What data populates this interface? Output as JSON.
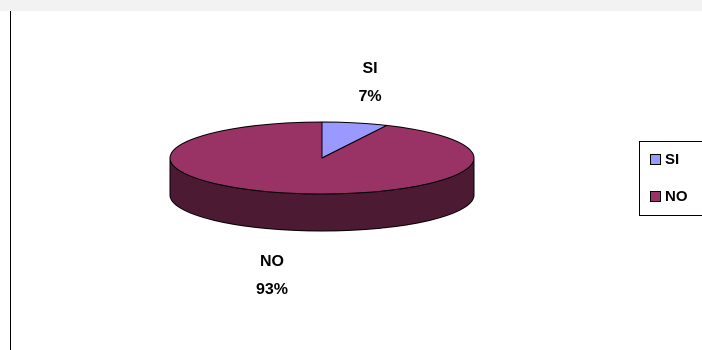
{
  "chart_data": {
    "type": "pie",
    "three_d": true,
    "categories": [
      "SI",
      "NO"
    ],
    "values": [
      7,
      93
    ],
    "data_labels": [
      {
        "name": "SI",
        "percent": "7%"
      },
      {
        "name": "NO",
        "percent": "93%"
      }
    ],
    "colors": {
      "SI": "#9999ff",
      "NO": "#993366",
      "NO_side": "#4d1a33",
      "SI_side": "#4d4d80"
    },
    "legend": {
      "placement": "right",
      "items": [
        {
          "label": "SI",
          "color": "#9999ff"
        },
        {
          "label": "NO",
          "color": "#993366"
        }
      ]
    }
  }
}
